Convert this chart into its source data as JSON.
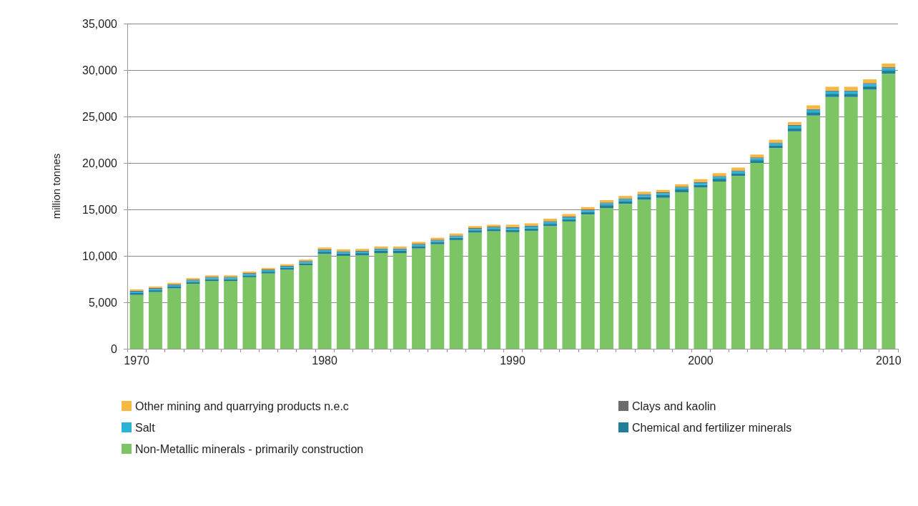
{
  "chart_data": {
    "type": "bar",
    "ylabel": "million tonnes",
    "stacked": true,
    "grid": "y",
    "legend": "bottom",
    "categories": [
      "1970",
      null,
      null,
      null,
      null,
      null,
      null,
      null,
      null,
      null,
      "1980",
      null,
      null,
      null,
      null,
      null,
      null,
      null,
      null,
      null,
      "1990",
      null,
      null,
      null,
      null,
      null,
      null,
      null,
      null,
      null,
      "2000",
      null,
      null,
      null,
      null,
      null,
      null,
      null,
      null,
      null,
      "2010"
    ],
    "ylim": [
      0,
      35000
    ],
    "yticks": [
      {
        "value": 0,
        "label": "0"
      },
      {
        "value": 5000,
        "label": "5,000"
      },
      {
        "value": 10000,
        "label": "10,000"
      },
      {
        "value": 15000,
        "label": "15,000"
      },
      {
        "value": 20000,
        "label": "20,000"
      },
      {
        "value": 25000,
        "label": "25,000"
      },
      {
        "value": 30000,
        "label": "30,000"
      },
      {
        "value": 35000,
        "label": "35,000"
      }
    ],
    "series": [
      {
        "name": "Non-Metallic minerals - primarily construction",
        "color": "#7dc465",
        "values": [
          5800,
          6100,
          6500,
          7000,
          7300,
          7300,
          7700,
          8100,
          8500,
          9000,
          10200,
          10000,
          10050,
          10300,
          10300,
          10800,
          11250,
          11700,
          12500,
          12650,
          12550,
          12700,
          13200,
          13700,
          14450,
          15150,
          15600,
          16050,
          16250,
          16850,
          17350,
          18000,
          18600,
          20000,
          21600,
          23400,
          25100,
          27100,
          27100,
          27900,
          29600
        ]
      },
      {
        "name": "Chemical and fertilizer minerals",
        "color": "#1f7f99",
        "values": [
          200,
          200,
          200,
          200,
          200,
          200,
          200,
          200,
          200,
          200,
          250,
          250,
          250,
          250,
          250,
          250,
          250,
          250,
          250,
          250,
          250,
          250,
          250,
          250,
          250,
          300,
          300,
          300,
          300,
          300,
          300,
          300,
          300,
          300,
          300,
          350,
          350,
          350,
          350,
          350,
          350
        ]
      },
      {
        "name": "Salt",
        "color": "#29b4d6",
        "values": [
          150,
          150,
          150,
          150,
          150,
          150,
          150,
          150,
          150,
          150,
          150,
          150,
          150,
          150,
          150,
          150,
          150,
          150,
          150,
          150,
          200,
          200,
          200,
          200,
          200,
          200,
          200,
          200,
          200,
          200,
          200,
          200,
          200,
          200,
          200,
          250,
          250,
          250,
          250,
          250,
          250
        ]
      },
      {
        "name": "Clays and kaolin",
        "color": "#6d6d6d",
        "values": [
          100,
          100,
          100,
          100,
          100,
          100,
          100,
          100,
          100,
          100,
          100,
          100,
          100,
          100,
          100,
          100,
          100,
          100,
          100,
          100,
          100,
          100,
          100,
          100,
          100,
          100,
          100,
          100,
          100,
          100,
          100,
          100,
          100,
          100,
          100,
          100,
          100,
          100,
          100,
          100,
          100
        ]
      },
      {
        "name": "Other mining and quarrying products n.e.c",
        "color": "#f5b942",
        "values": [
          150,
          150,
          150,
          150,
          150,
          150,
          150,
          150,
          150,
          150,
          200,
          200,
          200,
          200,
          200,
          200,
          200,
          200,
          200,
          200,
          250,
          250,
          250,
          250,
          250,
          250,
          250,
          250,
          250,
          250,
          300,
          300,
          300,
          300,
          300,
          300,
          400,
          400,
          400,
          400,
          400
        ]
      }
    ]
  }
}
